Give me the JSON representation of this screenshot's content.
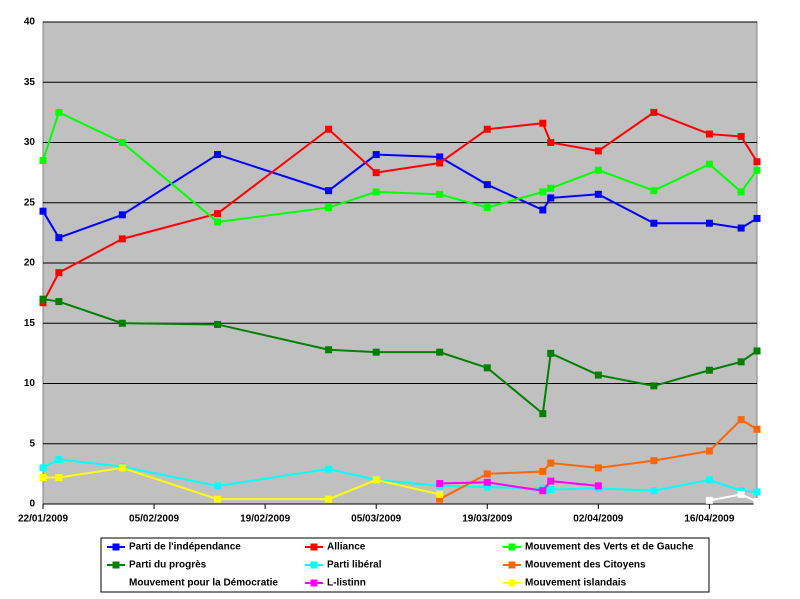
{
  "chart_data": {
    "type": "line",
    "x": [
      "22/01/2009",
      "24/01/2009",
      "01/02/2009",
      "13/02/2009",
      "27/02/2009",
      "05/03/2009",
      "13/03/2009",
      "19/03/2009",
      "26/03/2009",
      "27/03/2009",
      "02/04/2009",
      "09/04/2009",
      "16/04/2009",
      "20/04/2009",
      "22/04/2009"
    ],
    "xlim": [
      "22/01/2009",
      "22/04/2009"
    ],
    "xticks": [
      "22/01/2009",
      "05/02/2009",
      "19/02/2009",
      "05/03/2009",
      "19/03/2009",
      "02/04/2009",
      "16/04/2009"
    ],
    "ylim": [
      0,
      40
    ],
    "yticks": [
      0,
      5,
      10,
      15,
      20,
      25,
      30,
      35,
      40
    ],
    "grid": true,
    "series": [
      {
        "name": "Parti de l'indépendance",
        "color": "#0000ff",
        "values": [
          24.3,
          22.1,
          24.0,
          29.0,
          26.0,
          29.0,
          28.8,
          26.5,
          24.4,
          25.4,
          25.7,
          23.3,
          23.3,
          22.9,
          23.7
        ]
      },
      {
        "name": "Alliance",
        "color": "#ff0000",
        "values": [
          16.7,
          19.2,
          22.0,
          24.1,
          31.1,
          27.5,
          28.3,
          31.1,
          31.6,
          30.0,
          29.3,
          32.5,
          30.7,
          30.5,
          28.4
        ]
      },
      {
        "name": "Mouvement des Verts et de Gauche",
        "color": "#00ff00",
        "values": [
          28.5,
          32.5,
          30.0,
          23.4,
          24.6,
          25.9,
          25.7,
          24.6,
          25.9,
          26.2,
          27.7,
          26.0,
          28.2,
          25.9,
          27.7
        ]
      },
      {
        "name": "Parti du progrès",
        "color": "#008000",
        "values": [
          17.0,
          16.8,
          15.0,
          14.9,
          12.8,
          12.6,
          12.6,
          11.3,
          7.5,
          12.5,
          10.7,
          9.8,
          11.1,
          11.8,
          12.7
        ]
      },
      {
        "name": "Parti libéral",
        "color": "#00ffff",
        "values": [
          3.0,
          3.7,
          3.1,
          1.5,
          2.9,
          2.0,
          1.5,
          1.4,
          1.3,
          1.2,
          1.3,
          1.1,
          2.0,
          1.1,
          1.0
        ]
      },
      {
        "name": "Mouvement des Citoyens",
        "color": "#ff6600",
        "values": [
          null,
          null,
          null,
          null,
          null,
          null,
          0.4,
          2.5,
          2.7,
          3.4,
          3.0,
          3.6,
          4.4,
          7.0,
          6.2
        ]
      },
      {
        "name": "Mouvement pour la Démocratie",
        "color": "#ffffff",
        "values": [
          null,
          null,
          null,
          null,
          null,
          null,
          null,
          null,
          null,
          null,
          null,
          null,
          0.3,
          0.8,
          0.2
        ]
      },
      {
        "name": "L-listinn",
        "color": "#ff00ff",
        "values": [
          null,
          null,
          null,
          null,
          null,
          null,
          1.7,
          1.8,
          1.1,
          1.9,
          1.5,
          null,
          null,
          null,
          null
        ]
      },
      {
        "name": "Mouvement islandais",
        "color": "#ffff00",
        "values": [
          2.2,
          2.2,
          3.0,
          0.4,
          0.4,
          2.0,
          0.8,
          null,
          null,
          null,
          null,
          null,
          null,
          null,
          null
        ]
      }
    ]
  }
}
